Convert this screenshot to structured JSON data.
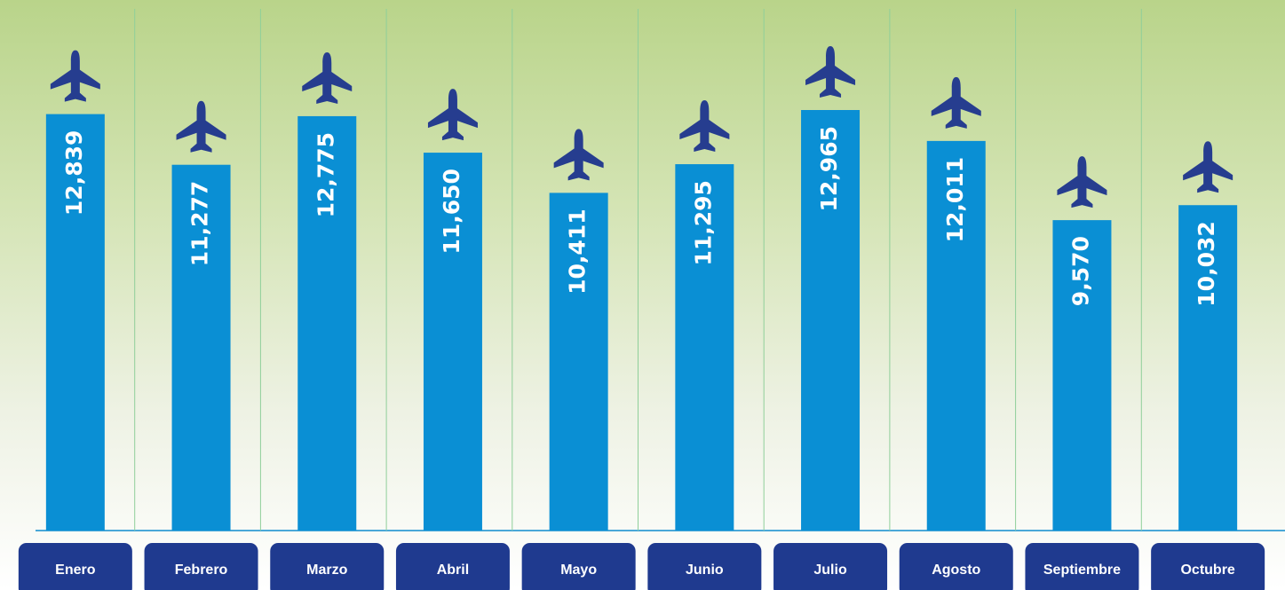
{
  "chart_data": {
    "type": "bar",
    "categories": [
      "Enero",
      "Febrero",
      "Marzo",
      "Abril",
      "Mayo",
      "Junio",
      "Julio",
      "Agosto",
      "Septiembre",
      "Octubre"
    ],
    "values": [
      12839,
      11277,
      12775,
      11650,
      10411,
      11295,
      12965,
      12011,
      9570,
      10032
    ],
    "value_labels": [
      "12,839",
      "11,277",
      "12,775",
      "11,650",
      "10,411",
      "11,295",
      "12,965",
      "12,011",
      "9,570",
      "10,032"
    ],
    "color": "#0a8fd4"
  }
}
